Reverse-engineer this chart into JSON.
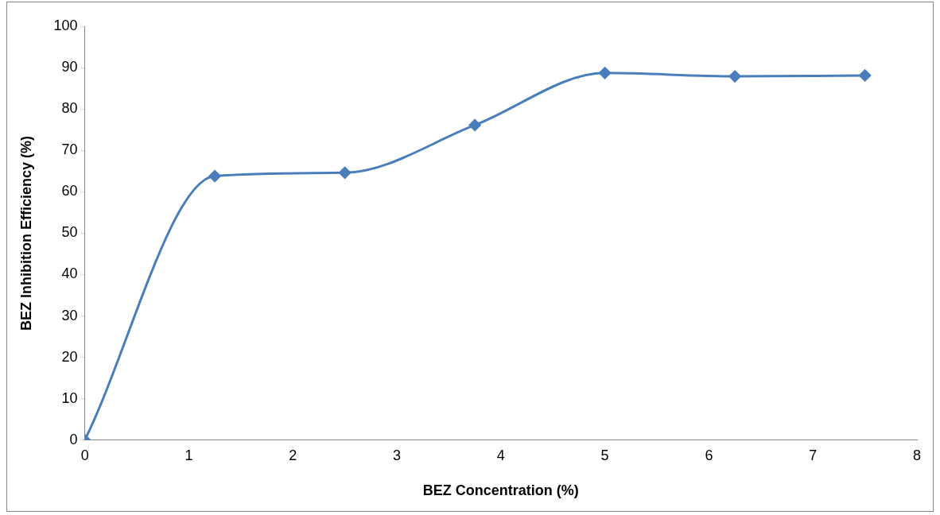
{
  "chart_data": {
    "type": "line",
    "xlabel": "BEZ Concentration (%)",
    "ylabel": "BEZ Inhibition Efficiency (%)",
    "x": [
      0,
      1.25,
      2.5,
      3.75,
      5,
      6.25,
      7.5
    ],
    "series": [
      {
        "color": "#4a7ebb",
        "values": [
          0,
          63.8,
          64.6,
          76.1,
          88.7,
          87.9,
          88.1
        ]
      }
    ],
    "xlim": [
      0,
      8
    ],
    "xticks": [
      0,
      1,
      2,
      3,
      4,
      5,
      6,
      7,
      8
    ],
    "ylim": [
      0,
      100
    ],
    "yticks": [
      0,
      10,
      20,
      30,
      40,
      50,
      60,
      70,
      80,
      90,
      100
    ],
    "grid": false,
    "legend": false,
    "marker": "diamond",
    "line_style": "solid"
  }
}
